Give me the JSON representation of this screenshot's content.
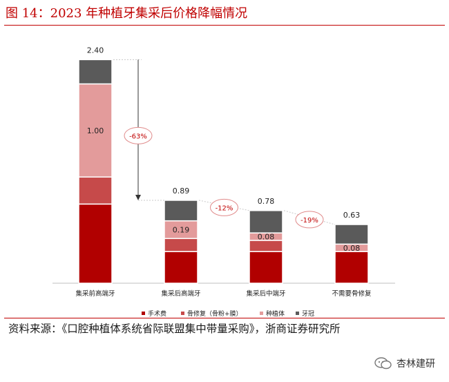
{
  "title": "图 14：2023 年种植牙集采后价格降幅情况",
  "source": "资料来源：《口腔种植体系统省际联盟集中带量采购》，浙商证券研究所",
  "watermark": "杏林建研",
  "colors": {
    "accent": "#c00000",
    "手术费": "#b10000",
    "骨修复": "#c64a4a",
    "种植体": "#e39b9b",
    "牙冠": "#5a5a5a"
  },
  "chart_data": {
    "type": "bar",
    "stacked": true,
    "categories": [
      "集采前高端牙",
      "集采后高端牙",
      "集采后中端牙",
      "不需要骨修复"
    ],
    "series": [
      {
        "name": "手术费",
        "values": [
          0.85,
          0.34,
          0.34,
          0.34
        ]
      },
      {
        "name": "骨修复（骨粉+膜）",
        "values": [
          0.29,
          0.14,
          0.12,
          0
        ]
      },
      {
        "name": "种植体",
        "values": [
          1.0,
          0.19,
          0.08,
          0.08
        ]
      },
      {
        "name": "牙冠",
        "values": [
          0.26,
          0.22,
          0.24,
          0.21
        ]
      }
    ],
    "totals": [
      "2.40",
      "0.89",
      "0.78",
      "0.63"
    ],
    "segment_labels": [
      {
        "category": 0,
        "series": 2,
        "text": "1.00"
      },
      {
        "category": 1,
        "series": 2,
        "text": "0.19"
      },
      {
        "category": 2,
        "series": 2,
        "text": "0.08"
      },
      {
        "category": 3,
        "series": 2,
        "text": "0.08"
      }
    ],
    "annotations": [
      {
        "text": "-63%",
        "from": 0,
        "to": 1
      },
      {
        "text": "-12%",
        "from": 1,
        "to": 2
      },
      {
        "text": "-19%",
        "from": 2,
        "to": 3
      }
    ],
    "legend": [
      "手术费",
      "骨修复（骨粉+膜）",
      "种植体",
      "牙冠"
    ],
    "ylim": [
      0,
      2.5
    ]
  }
}
